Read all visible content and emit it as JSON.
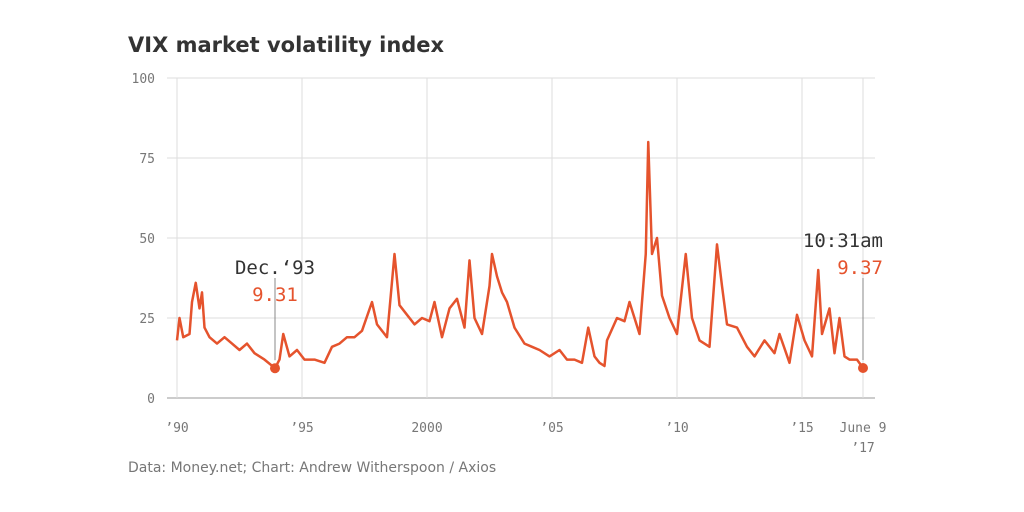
{
  "chart_data": {
    "type": "line",
    "title": "VIX market volatility index",
    "source": "Data: Money.net; Chart: Andrew Witherspoon / Axios",
    "x": [
      1990.0,
      1990.1,
      1990.25,
      1990.5,
      1990.6,
      1990.75,
      1990.9,
      1991.0,
      1991.1,
      1991.3,
      1991.6,
      1991.9,
      1992.2,
      1992.5,
      1992.8,
      1993.1,
      1993.5,
      1993.92,
      1994.1,
      1994.25,
      1994.5,
      1994.8,
      1995.1,
      1995.5,
      1995.9,
      1996.2,
      1996.5,
      1996.8,
      1997.1,
      1997.4,
      1997.8,
      1998.0,
      1998.4,
      1998.7,
      1998.9,
      1999.2,
      1999.5,
      1999.8,
      2000.1,
      2000.3,
      2000.6,
      2000.9,
      2001.2,
      2001.5,
      2001.7,
      2001.9,
      2002.2,
      2002.5,
      2002.6,
      2002.8,
      2003.0,
      2003.2,
      2003.5,
      2003.9,
      2004.2,
      2004.5,
      2004.9,
      2005.3,
      2005.6,
      2005.9,
      2006.2,
      2006.45,
      2006.7,
      2006.9,
      2007.1,
      2007.2,
      2007.6,
      2007.9,
      2008.1,
      2008.5,
      2008.75,
      2008.85,
      2009.0,
      2009.2,
      2009.4,
      2009.7,
      2010.0,
      2010.35,
      2010.6,
      2010.9,
      2011.3,
      2011.6,
      2011.8,
      2012.0,
      2012.4,
      2012.8,
      2013.1,
      2013.5,
      2013.9,
      2014.1,
      2014.5,
      2014.8,
      2015.1,
      2015.4,
      2015.65,
      2015.8,
      2016.1,
      2016.3,
      2016.5,
      2016.7,
      2016.9,
      2017.2,
      2017.44
    ],
    "series": [
      {
        "name": "VIX",
        "color": "#e5532d",
        "values": [
          18,
          25,
          19,
          20,
          30,
          36,
          28,
          33,
          22,
          19,
          17,
          19,
          17,
          15,
          17,
          14,
          12,
          9.31,
          12,
          20,
          13,
          15,
          12,
          12,
          11,
          16,
          17,
          19,
          19,
          21,
          30,
          23,
          19,
          45,
          29,
          26,
          23,
          25,
          24,
          30,
          19,
          28,
          31,
          22,
          43,
          25,
          20,
          35,
          45,
          38,
          33,
          30,
          22,
          17,
          16,
          15,
          13,
          15,
          12,
          12,
          11,
          22,
          13,
          11,
          10,
          18,
          25,
          24,
          30,
          20,
          45,
          80,
          45,
          50,
          32,
          25,
          20,
          45,
          25,
          18,
          16,
          48,
          35,
          23,
          22,
          16,
          13,
          18,
          14,
          20,
          11,
          26,
          18,
          13,
          40,
          20,
          28,
          14,
          25,
          13,
          12,
          12,
          9.37
        ]
      }
    ],
    "xlim": [
      1989.6,
      2017.92
    ],
    "ylim": [
      0,
      100
    ],
    "xticks": [
      {
        "value": 1990,
        "label": "’90"
      },
      {
        "value": 1995,
        "label": "’95"
      },
      2000,
      {
        "value": 2005,
        "label": "’05"
      },
      {
        "value": 2010,
        "label": "’10"
      },
      {
        "value": 2015,
        "label": "’15"
      },
      {
        "value": 2017.44,
        "label": "June 9"
      }
    ],
    "x_end_year": "’17",
    "yticks": [
      0,
      25,
      50,
      75,
      100
    ],
    "grid": true,
    "annotations": [
      {
        "label": "Dec.‘93",
        "x": 1993.92,
        "value": 9.31
      },
      {
        "label": "10:31am",
        "x": 2017.44,
        "value": 9.37
      }
    ]
  }
}
